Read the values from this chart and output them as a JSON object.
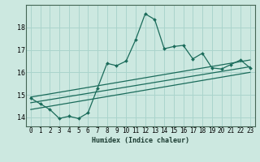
{
  "title": "",
  "xlabel": "Humidex (Indice chaleur)",
  "background_color": "#cce8e0",
  "line_color": "#1a6b5a",
  "grid_color": "#aad4cc",
  "xlim": [
    -0.5,
    23.5
  ],
  "ylim": [
    13.6,
    19.0
  ],
  "xticks": [
    0,
    1,
    2,
    3,
    4,
    5,
    6,
    7,
    8,
    9,
    10,
    11,
    12,
    13,
    14,
    15,
    16,
    17,
    18,
    19,
    20,
    21,
    22,
    23
  ],
  "yticks": [
    14,
    15,
    16,
    17,
    18
  ],
  "curve1_x": [
    0,
    1,
    2,
    3,
    4,
    5,
    6,
    7,
    8,
    9,
    10,
    11,
    12,
    13,
    14,
    15,
    16,
    17,
    18,
    19,
    20,
    21,
    22,
    23
  ],
  "curve1_y": [
    14.85,
    14.6,
    14.35,
    13.95,
    14.05,
    13.95,
    14.2,
    15.3,
    16.4,
    16.3,
    16.5,
    17.45,
    18.6,
    18.35,
    17.05,
    17.15,
    17.2,
    16.6,
    16.85,
    16.2,
    16.15,
    16.35,
    16.55,
    16.2
  ],
  "line1_x": [
    0,
    23
  ],
  "line1_y": [
    14.65,
    16.25
  ],
  "line2_x": [
    0,
    23
  ],
  "line2_y": [
    14.9,
    16.55
  ],
  "line3_x": [
    0,
    23
  ],
  "line3_y": [
    14.35,
    16.0
  ]
}
